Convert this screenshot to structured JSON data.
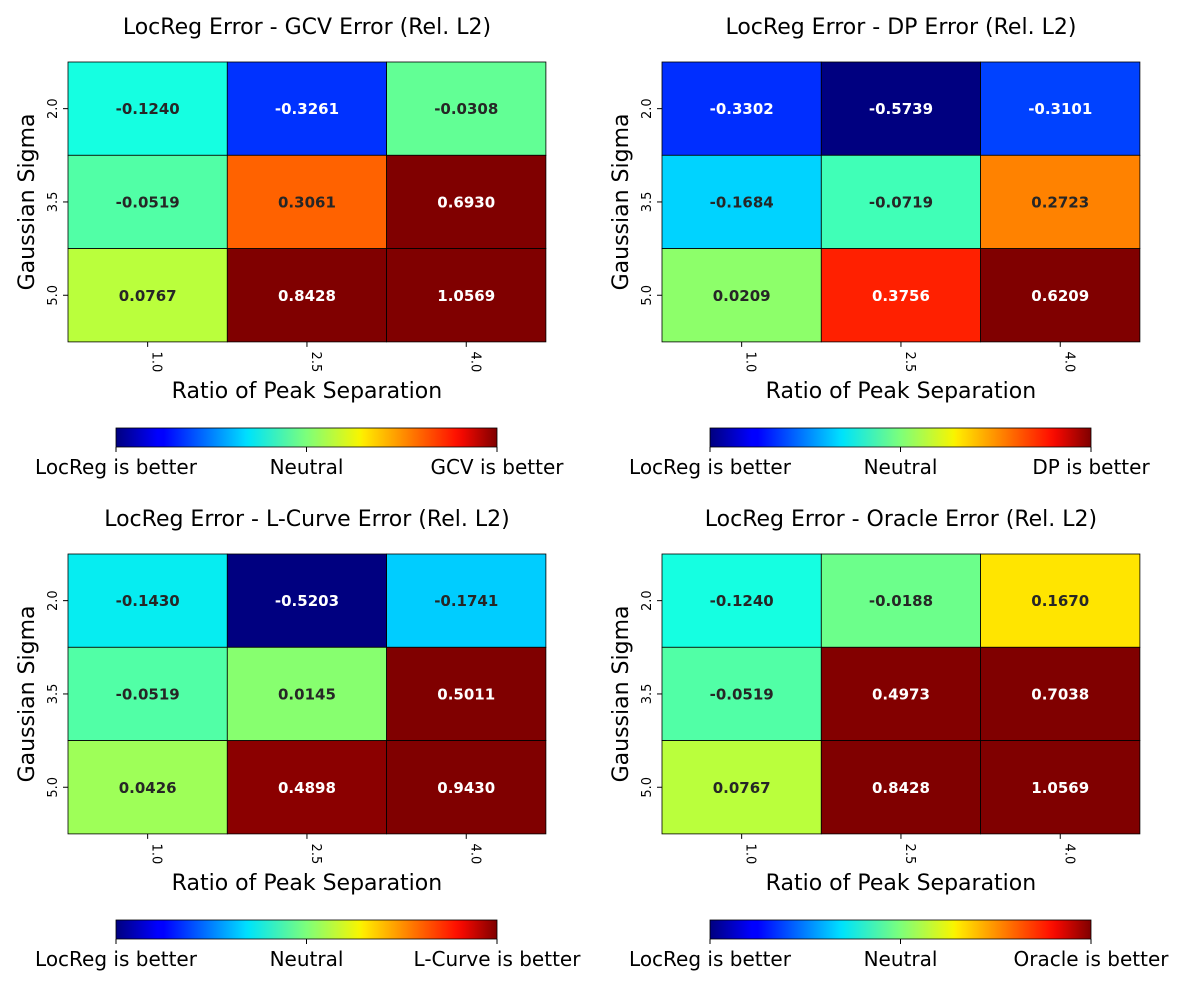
{
  "chart_data": [
    {
      "type": "heatmap",
      "title": "LocReg Error - GCV Error (Rel. L2)",
      "xlabel": "Ratio of Peak Separation",
      "ylabel": "Gaussian Sigma",
      "x_ticks": [
        "1.0",
        "2.5",
        "4.0"
      ],
      "y_ticks": [
        "2.0",
        "3.5",
        "5.0"
      ],
      "values": [
        [
          -0.124,
          -0.3261,
          -0.0308
        ],
        [
          -0.0519,
          0.3061,
          0.693
        ],
        [
          0.0767,
          0.8428,
          1.0569
        ]
      ],
      "labels": [
        [
          "-0.1240",
          "-0.3261",
          "-0.0308"
        ],
        [
          "-0.0519",
          "0.3061",
          "0.6930"
        ],
        [
          "0.0767",
          "0.8428",
          "1.0569"
        ]
      ],
      "color_range": [
        -0.5,
        0.5
      ],
      "colormap": "jet",
      "colorbar": {
        "placement": "bottom",
        "left_label": "LocReg is better",
        "center_label": "Neutral",
        "right_label": "GCV is better"
      }
    },
    {
      "type": "heatmap",
      "title": "LocReg Error - DP Error (Rel. L2)",
      "xlabel": "Ratio of Peak Separation",
      "ylabel": "Gaussian Sigma",
      "x_ticks": [
        "1.0",
        "2.5",
        "4.0"
      ],
      "y_ticks": [
        "2.0",
        "3.5",
        "5.0"
      ],
      "values": [
        [
          -0.3302,
          -0.5739,
          -0.3101
        ],
        [
          -0.1684,
          -0.0719,
          0.2723
        ],
        [
          0.0209,
          0.3756,
          0.6209
        ]
      ],
      "labels": [
        [
          "-0.3302",
          "-0.5739",
          "-0.3101"
        ],
        [
          "-0.1684",
          "-0.0719",
          "0.2723"
        ],
        [
          "0.0209",
          "0.3756",
          "0.6209"
        ]
      ],
      "color_range": [
        -0.5,
        0.5
      ],
      "colormap": "jet",
      "colorbar": {
        "placement": "bottom",
        "left_label": "LocReg is better",
        "center_label": "Neutral",
        "right_label": "DP is better"
      }
    },
    {
      "type": "heatmap",
      "title": "LocReg Error - L-Curve Error (Rel. L2)",
      "xlabel": "Ratio of Peak Separation",
      "ylabel": "Gaussian Sigma",
      "x_ticks": [
        "1.0",
        "2.5",
        "4.0"
      ],
      "y_ticks": [
        "2.0",
        "3.5",
        "5.0"
      ],
      "values": [
        [
          -0.143,
          -0.5203,
          -0.1741
        ],
        [
          -0.0519,
          0.0145,
          0.5011
        ],
        [
          0.0426,
          0.4898,
          0.943
        ]
      ],
      "labels": [
        [
          "-0.1430",
          "-0.5203",
          "-0.1741"
        ],
        [
          "-0.0519",
          "0.0145",
          "0.5011"
        ],
        [
          "0.0426",
          "0.4898",
          "0.9430"
        ]
      ],
      "color_range": [
        -0.5,
        0.5
      ],
      "colormap": "jet",
      "colorbar": {
        "placement": "bottom",
        "left_label": "LocReg is better",
        "center_label": "Neutral",
        "right_label": "L-Curve is better"
      }
    },
    {
      "type": "heatmap",
      "title": "LocReg Error - Oracle Error (Rel. L2)",
      "xlabel": "Ratio of Peak Separation",
      "ylabel": "Gaussian Sigma",
      "x_ticks": [
        "1.0",
        "2.5",
        "4.0"
      ],
      "y_ticks": [
        "2.0",
        "3.5",
        "5.0"
      ],
      "values": [
        [
          -0.124,
          -0.0188,
          0.167
        ],
        [
          -0.0519,
          0.4973,
          0.7038
        ],
        [
          0.0767,
          0.8428,
          1.0569
        ]
      ],
      "labels": [
        [
          "-0.1240",
          "-0.0188",
          "0.1670"
        ],
        [
          "-0.0519",
          "0.4973",
          "0.7038"
        ],
        [
          "0.0767",
          "0.8428",
          "1.0569"
        ]
      ],
      "color_range": [
        -0.5,
        0.5
      ],
      "colormap": "jet",
      "colorbar": {
        "placement": "bottom",
        "left_label": "LocReg is better",
        "center_label": "Neutral",
        "right_label": "Oracle is better"
      }
    }
  ]
}
